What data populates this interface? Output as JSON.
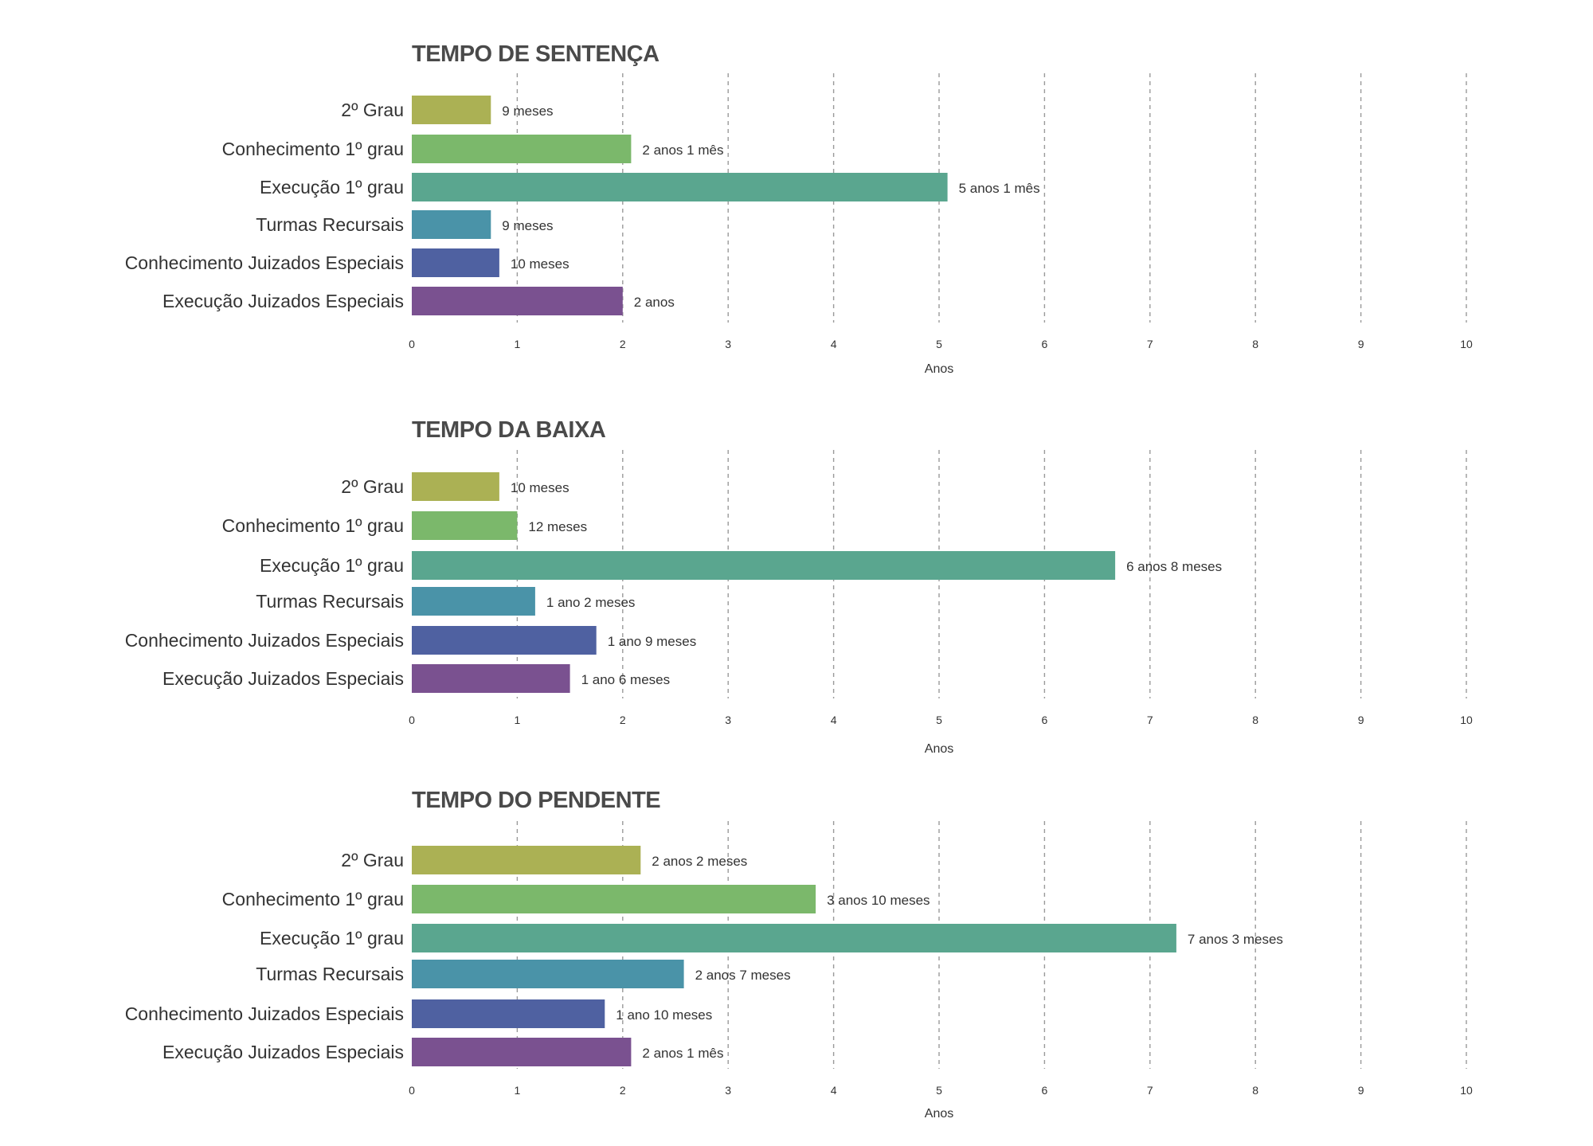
{
  "chart_data": [
    {
      "type": "bar",
      "orientation": "horizontal",
      "title": "TEMPO DE SENTENÇA",
      "xlabel": "Anos",
      "xlim": [
        0,
        10
      ],
      "xticks": [
        "0",
        "1",
        "2",
        "3",
        "4",
        "5",
        "6",
        "7",
        "8",
        "9",
        "10"
      ],
      "grid": "vertical dashed",
      "categories": [
        "2º Grau",
        "Conhecimento 1º grau",
        "Execução 1º grau",
        "Turmas Recursais",
        "Conhecimento Juizados  Especiais",
        "Execução Juizados Especiais"
      ],
      "values": [
        0.75,
        2.08,
        5.08,
        0.75,
        0.83,
        2.0
      ],
      "value_labels": [
        "9 meses",
        "2 anos 1 mês",
        "5 anos 1 mês",
        "9 meses",
        "10 meses",
        "2 anos"
      ],
      "colors": [
        "#abb154",
        "#7bb86b",
        "#5aa68f",
        "#4a93a8",
        "#4f61a1",
        "#7a5190"
      ]
    },
    {
      "type": "bar",
      "orientation": "horizontal",
      "title": "TEMPO DA BAIXA",
      "xlabel": "Anos",
      "xlim": [
        0,
        10
      ],
      "xticks": [
        "0",
        "1",
        "2",
        "3",
        "4",
        "5",
        "6",
        "7",
        "8",
        "9",
        "10"
      ],
      "grid": "vertical dashed",
      "categories": [
        "2º Grau",
        "Conhecimento 1º grau",
        "Execução 1º grau",
        "Turmas Recursais",
        "Conhecimento Juizados  Especiais",
        "Execução Juizados Especiais"
      ],
      "values": [
        0.83,
        1.0,
        6.67,
        1.17,
        1.75,
        1.5
      ],
      "value_labels": [
        "10 meses",
        "12 meses",
        "6 anos 8 meses",
        "1 ano 2 meses",
        "1 ano 9 meses",
        "1 ano 6 meses"
      ],
      "colors": [
        "#abb154",
        "#7bb86b",
        "#5aa68f",
        "#4a93a8",
        "#4f61a1",
        "#7a5190"
      ]
    },
    {
      "type": "bar",
      "orientation": "horizontal",
      "title": "TEMPO DO PENDENTE",
      "xlabel": "Anos",
      "xlim": [
        0,
        10
      ],
      "xticks": [
        "0",
        "1",
        "2",
        "3",
        "4",
        "5",
        "6",
        "7",
        "8",
        "9",
        "10"
      ],
      "grid": "vertical dashed",
      "categories": [
        "2º Grau",
        "Conhecimento 1º grau",
        "Execução 1º grau",
        "Turmas Recursais",
        "Conhecimento Juizados  Especiais",
        "Execução Juizados Especiais"
      ],
      "values": [
        2.17,
        3.83,
        7.25,
        2.58,
        1.83,
        2.08
      ],
      "value_labels": [
        "2 anos 2 meses",
        "3 anos 10 meses",
        "7 anos 3 meses",
        "2 anos 7 meses",
        "1 ano 10 meses",
        "2 anos 1 mês"
      ],
      "colors": [
        "#abb154",
        "#7bb86b",
        "#5aa68f",
        "#4a93a8",
        "#4f61a1",
        "#7a5190"
      ]
    }
  ]
}
